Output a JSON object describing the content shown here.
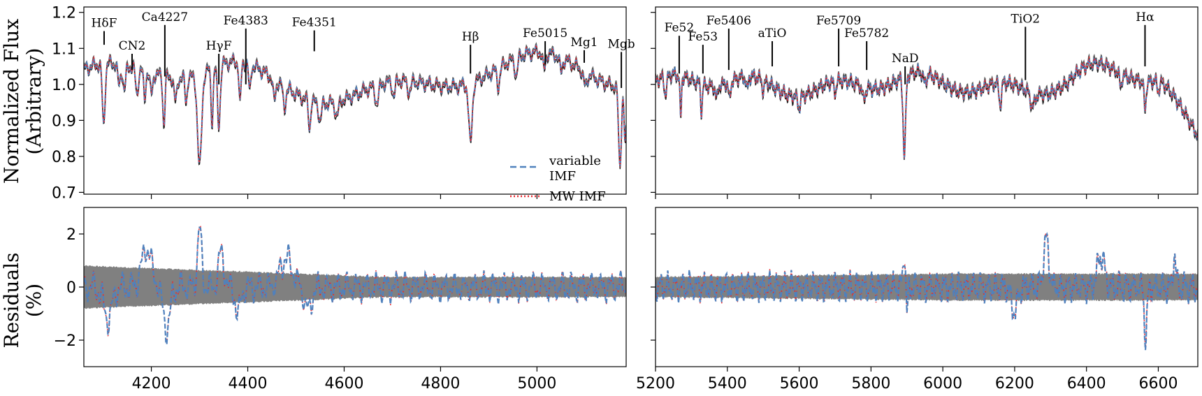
{
  "chart_data": [
    {
      "panel": "top-left",
      "type": "line",
      "xlim": [
        4060,
        5185
      ],
      "ylim": [
        0.695,
        1.215
      ],
      "yticks": [
        0.7,
        0.8,
        0.9,
        1.0,
        1.1,
        1.2
      ],
      "ytick_labels": [
        "0.7",
        "0.8",
        "0.9",
        "1.0",
        "1.1",
        "1.2"
      ],
      "xticks": [
        4200,
        4400,
        4600,
        4800,
        5000
      ],
      "ylabel_line1": "Normalized Flux",
      "ylabel_line2": "(Arbitrary)",
      "legend": {
        "placement": "lower-right",
        "entries": [
          {
            "line1": "variable",
            "line2": "IMF",
            "style": "dashed",
            "color": "#4f81bd"
          },
          {
            "line1": "MW IMF",
            "line2": "",
            "style": "dotted",
            "color": "#e8272d"
          }
        ]
      },
      "features": [
        {
          "label": "HδF",
          "x": 4102,
          "y_top": 1.148,
          "y_bot": 1.11
        },
        {
          "label": "CN2",
          "x": 4160,
          "y_top": 1.085,
          "y_bot": 1.04
        },
        {
          "label": "Ca4227",
          "x": 4228,
          "y_top": 1.165,
          "y_bot": 1.022
        },
        {
          "label": "HγF",
          "x": 4340,
          "y_top": 1.085,
          "y_bot": 1.0
        },
        {
          "label": "Fe4383",
          "x": 4396,
          "y_top": 1.155,
          "y_bot": 1.0
        },
        {
          "label": "Fe4351",
          "x": 4538,
          "y_top": 1.15,
          "y_bot": 1.092
        },
        {
          "label": "Hβ",
          "x": 4862,
          "y_top": 1.11,
          "y_bot": 1.03
        },
        {
          "label": "Fe5015",
          "x": 5017,
          "y_top": 1.12,
          "y_bot": 1.055
        },
        {
          "label": "Mg1",
          "x": 5098,
          "y_top": 1.095,
          "y_bot": 1.06
        },
        {
          "label": "Mgb",
          "x": 5175,
          "y_top": 1.09,
          "y_bot": 0.99
        }
      ]
    },
    {
      "panel": "top-right",
      "type": "line",
      "xlim": [
        5200,
        6710
      ],
      "ylim": [
        0.695,
        1.215
      ],
      "features": [
        {
          "label": "Fe52",
          "x": 5266,
          "y_top": 1.135,
          "y_bot": 1.03
        },
        {
          "label": "Fe53",
          "x": 5332,
          "y_top": 1.11,
          "y_bot": 1.03
        },
        {
          "label": "Fe5406",
          "x": 5404,
          "y_top": 1.155,
          "y_bot": 1.04
        },
        {
          "label": "aTiO",
          "x": 5525,
          "y_top": 1.12,
          "y_bot": 1.05
        },
        {
          "label": "Fe5709",
          "x": 5710,
          "y_top": 1.155,
          "y_bot": 1.05
        },
        {
          "label": "Fe5782",
          "x": 5788,
          "y_top": 1.12,
          "y_bot": 1.04
        },
        {
          "label": "NaD",
          "x": 5895,
          "y_top": 1.05,
          "y_bot": 1.0
        },
        {
          "label": "TiO2",
          "x": 6230,
          "y_top": 1.16,
          "y_bot": 1.012
        },
        {
          "label": "Hα",
          "x": 6563,
          "y_top": 1.165,
          "y_bot": 1.05
        }
      ]
    },
    {
      "panel": "bottom-left",
      "type": "line",
      "xlim": [
        4060,
        5185
      ],
      "ylim": [
        -3.0,
        3.0
      ],
      "yticks": [
        -2,
        0,
        2
      ],
      "ytick_labels": [
        "−2",
        "0",
        "2"
      ],
      "xticks": [
        4200,
        4400,
        4600,
        4800,
        5000
      ],
      "xtick_labels": [
        "4200",
        "4400",
        "4600",
        "4800",
        "5000"
      ],
      "ylabel_line1": "Residuals",
      "ylabel_line2": "(%)",
      "band_half_width_start": 0.8,
      "band_half_width_end": 0.38
    },
    {
      "panel": "bottom-right",
      "type": "line",
      "xlim": [
        5200,
        6710
      ],
      "ylim": [
        -3.0,
        3.0
      ],
      "xticks": [
        5200,
        5400,
        5600,
        5800,
        6000,
        6200,
        6400,
        6600
      ],
      "xtick_labels": [
        "5200",
        "5400",
        "5600",
        "5800",
        "6000",
        "6200",
        "6400",
        "6600"
      ],
      "band_half_width_start": 0.38,
      "band_half_width_end": 0.5
    }
  ]
}
